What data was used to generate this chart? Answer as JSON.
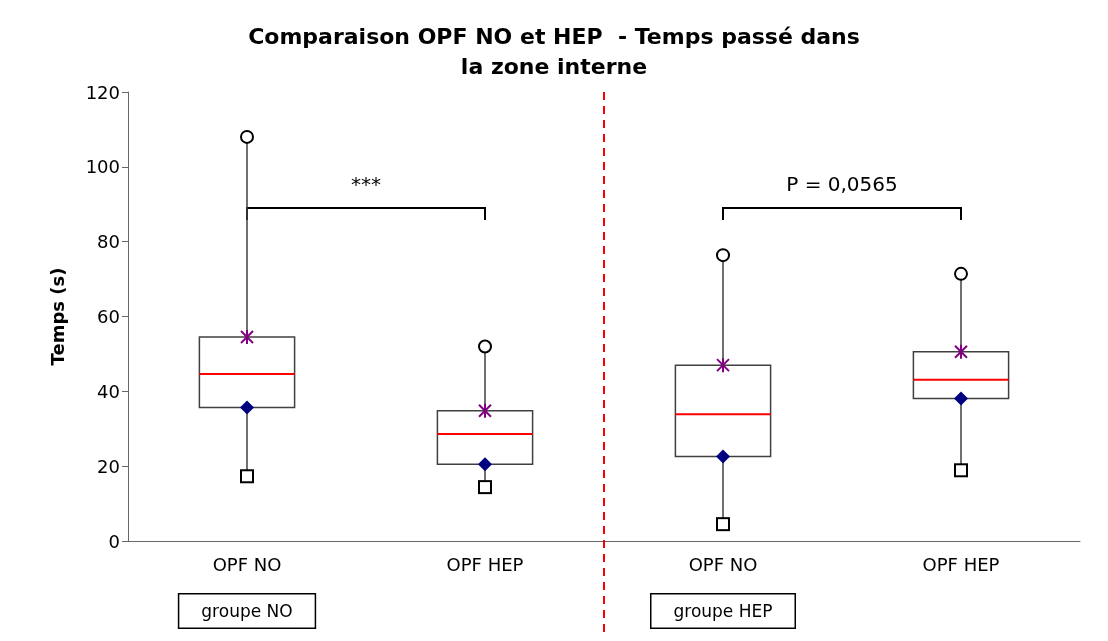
{
  "chart_data": {
    "type": "box",
    "title": "Comparaison OPF NO et HEP  - Temps passé dans\nla zone interne",
    "ylabel": "Temps (s)",
    "categories": [
      "OPF NO",
      "OPF HEP",
      "OPF NO",
      "OPF HEP"
    ],
    "boxes": [
      {
        "low": 17.3,
        "q1": 35.7,
        "median": 44.6,
        "q3": 54.5,
        "high": 108
      },
      {
        "low": 14.4,
        "q1": 20.5,
        "median": 28.6,
        "q3": 34.8,
        "high": 52
      },
      {
        "low": 4.5,
        "q1": 22.6,
        "median": 33.9,
        "q3": 47,
        "high": 76.4
      },
      {
        "low": 18.9,
        "q1": 38.1,
        "median": 43.1,
        "q3": 50.6,
        "high": 71.4
      }
    ],
    "color": "#404040",
    "ylim": [
      0,
      120
    ],
    "yticks": [
      0,
      20,
      40,
      60,
      80,
      100,
      120
    ],
    "annotations": [
      "***",
      "P = 0,0565",
      "groupe NO",
      "groupe HEP"
    ],
    "grid": false
  }
}
